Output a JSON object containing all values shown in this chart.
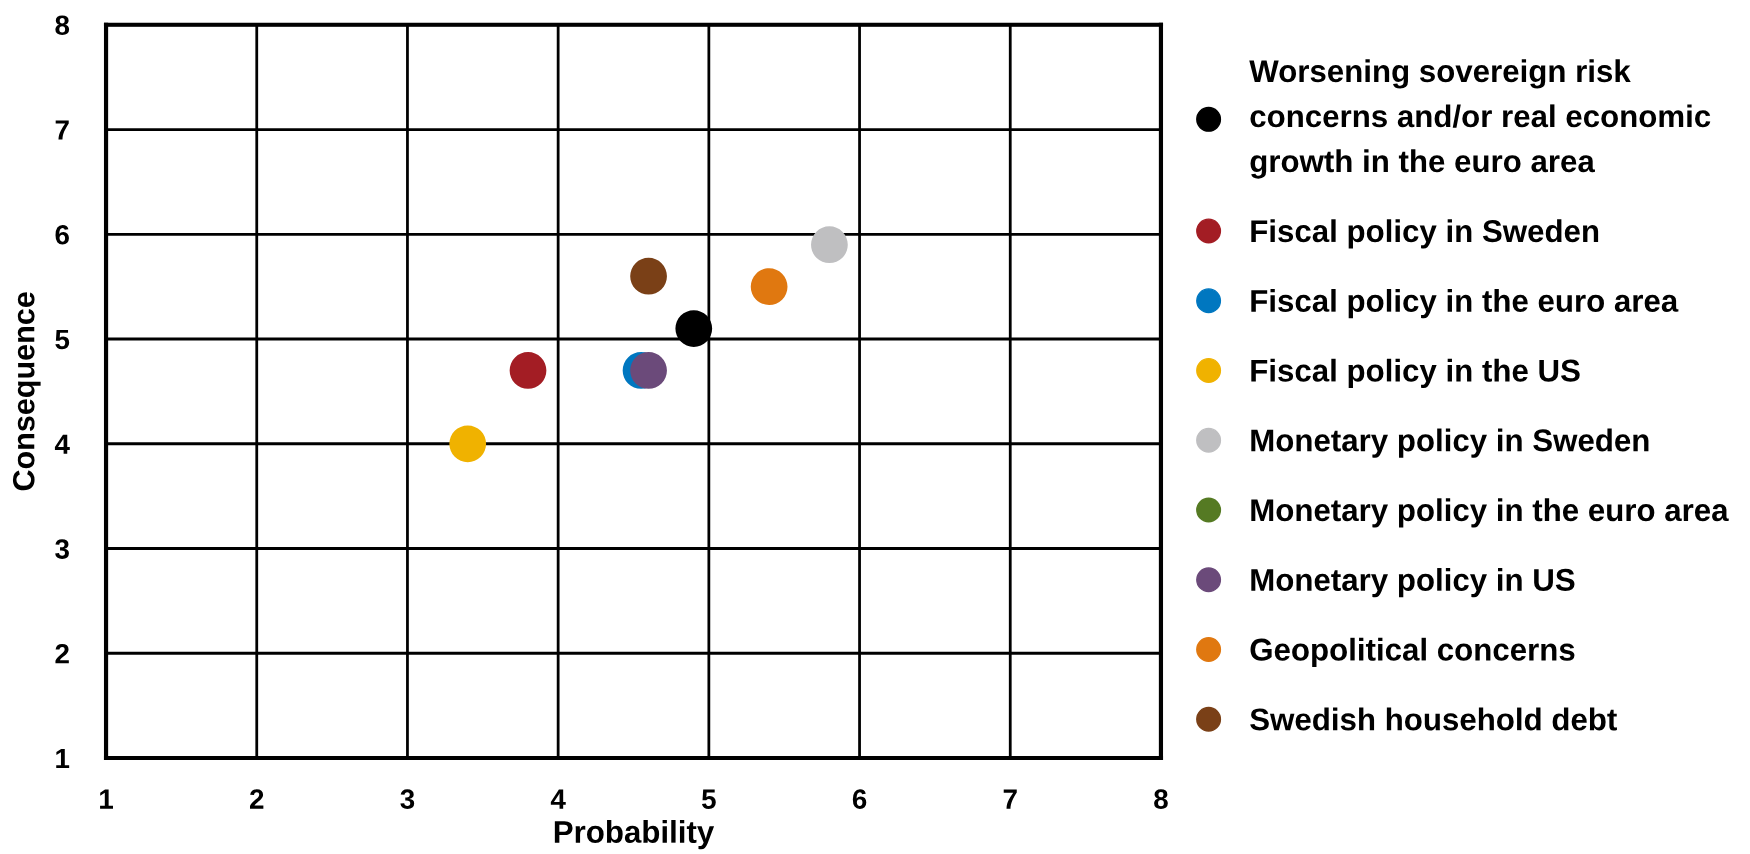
{
  "chart_data": {
    "type": "scatter",
    "xlabel": "Probability",
    "ylabel": "Consequence",
    "xlim": [
      1,
      8
    ],
    "ylim": [
      1,
      8
    ],
    "xticks": [
      1,
      2,
      3,
      4,
      5,
      6,
      7,
      8
    ],
    "yticks": [
      1,
      2,
      3,
      4,
      5,
      6,
      7,
      8
    ],
    "grid": true,
    "legend": "right",
    "marker": "circle",
    "series": [
      {
        "name": "Worsening sovereign risk\nconcerns and/or real economic\ngrowth in the euro area",
        "color": "#000000",
        "x": [
          4.9
        ],
        "values": [
          5.1
        ]
      },
      {
        "name": "Fiscal policy in Sweden",
        "color": "#a31d24",
        "x": [
          3.8
        ],
        "values": [
          4.7
        ]
      },
      {
        "name": "Fiscal policy in the euro area",
        "color": "#0077c0",
        "x": [
          4.55
        ],
        "values": [
          4.7
        ]
      },
      {
        "name": "Fiscal policy in the US",
        "color": "#f0b200",
        "x": [
          3.4
        ],
        "values": [
          4.0
        ]
      },
      {
        "name": "Monetary policy in Sweden",
        "color": "#bfbfc1",
        "x": [
          5.8
        ],
        "values": [
          5.9
        ]
      },
      {
        "name": "Monetary policy in the euro area",
        "color": "#557a23",
        "x": [
          null
        ],
        "values": [
          null
        ]
      },
      {
        "name": "Monetary policy in US",
        "color": "#6b4a7a",
        "x": [
          4.6
        ],
        "values": [
          4.7
        ]
      },
      {
        "name": "Geopolitical concerns",
        "color": "#e07810",
        "x": [
          5.4
        ],
        "values": [
          5.5
        ]
      },
      {
        "name": "Swedish household debt",
        "color": "#7a4017",
        "x": [
          4.6
        ],
        "values": [
          5.6
        ]
      }
    ]
  }
}
